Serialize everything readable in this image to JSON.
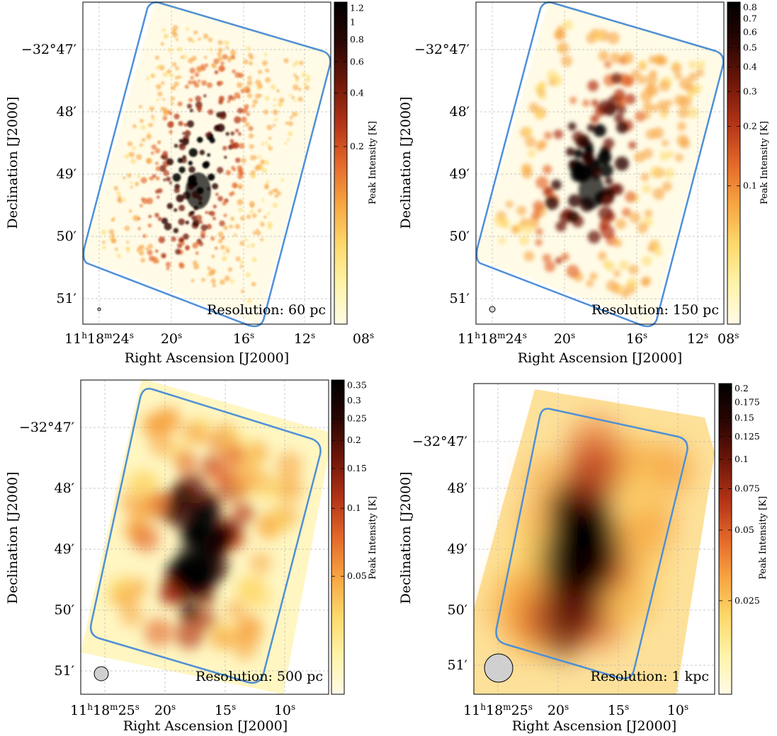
{
  "chart_data": [
    {
      "type": "heatmap",
      "resolution_label": "Resolution: 60 pc",
      "xlabel": "Right Ascension [J2000]",
      "ylabel": "Declination [J2000]",
      "x_ticks": [
        "11h18m24s",
        "20s",
        "16s",
        "12s",
        "08s"
      ],
      "y_ticks": [
        "−32°47′",
        "48′",
        "49′",
        "50′",
        "51′"
      ],
      "colorbar": {
        "label": "Peak Intensity [K]",
        "ticks": [
          1.2,
          1.0,
          0.8,
          0.6,
          0.4,
          0.2
        ],
        "min": 0.02,
        "max": 1.3,
        "scale": "log"
      },
      "beam": "small",
      "peak_decl_arcmin": 49.5,
      "colormap": [
        "#fffbe6",
        "#fff3a8",
        "#fdd86a",
        "#f7a441",
        "#e3672a",
        "#b23316",
        "#6e1709",
        "#2a0603",
        "#000000"
      ]
    },
    {
      "type": "heatmap",
      "resolution_label": "Resolution: 150 pc",
      "xlabel": "Right Ascension [J2000]",
      "ylabel": "Declination [J2000]",
      "x_ticks": [
        "11h18m24s",
        "20s",
        "16s",
        "12s",
        "08s"
      ],
      "y_ticks": [
        "−32°47′",
        "48′",
        "49′",
        "50′",
        "51′"
      ],
      "colorbar": {
        "label": "Peak Intensity [K]",
        "ticks": [
          0.8,
          0.7,
          0.6,
          0.5,
          0.4,
          0.3,
          0.2,
          0.1
        ],
        "min": 0.02,
        "max": 0.85,
        "scale": "log"
      },
      "beam": "small",
      "peak_decl_arcmin": 49.6
    },
    {
      "type": "heatmap",
      "resolution_label": "Resolution: 500 pc",
      "xlabel": "Right Ascension [J2000]",
      "ylabel": "Declination [J2000]",
      "x_ticks": [
        "11h18m25s",
        "20s",
        "15s",
        "10s"
      ],
      "y_ticks": [
        "−32°47′",
        "48′",
        "49′",
        "50′",
        "51′"
      ],
      "colorbar": {
        "label": "Peak Intensity [K]",
        "ticks": [
          0.35,
          0.3,
          0.25,
          0.2,
          0.15,
          0.1,
          0.05
        ],
        "min": 0.015,
        "max": 0.37,
        "scale": "log"
      },
      "beam": "medium",
      "peak_decl_arcmin": 49.7
    },
    {
      "type": "heatmap",
      "resolution_label": "Resolution: 1 kpc",
      "xlabel": "Right Ascension [J2000]",
      "ylabel": "Declination [J2000]",
      "x_ticks": [
        "11h18m25s",
        "20s",
        "15s",
        "10s"
      ],
      "y_ticks": [
        "−32°47′",
        "48′",
        "49′",
        "50′",
        "51′"
      ],
      "colorbar": {
        "label": "Peak Intensity [K]",
        "ticks": [
          0.2,
          0.175,
          0.15,
          0.125,
          0.1,
          0.075,
          0.05,
          0.025
        ],
        "min": 0.01,
        "max": 0.21,
        "scale": "log"
      },
      "beam": "large",
      "peak_decl_arcmin": 49.7
    }
  ]
}
